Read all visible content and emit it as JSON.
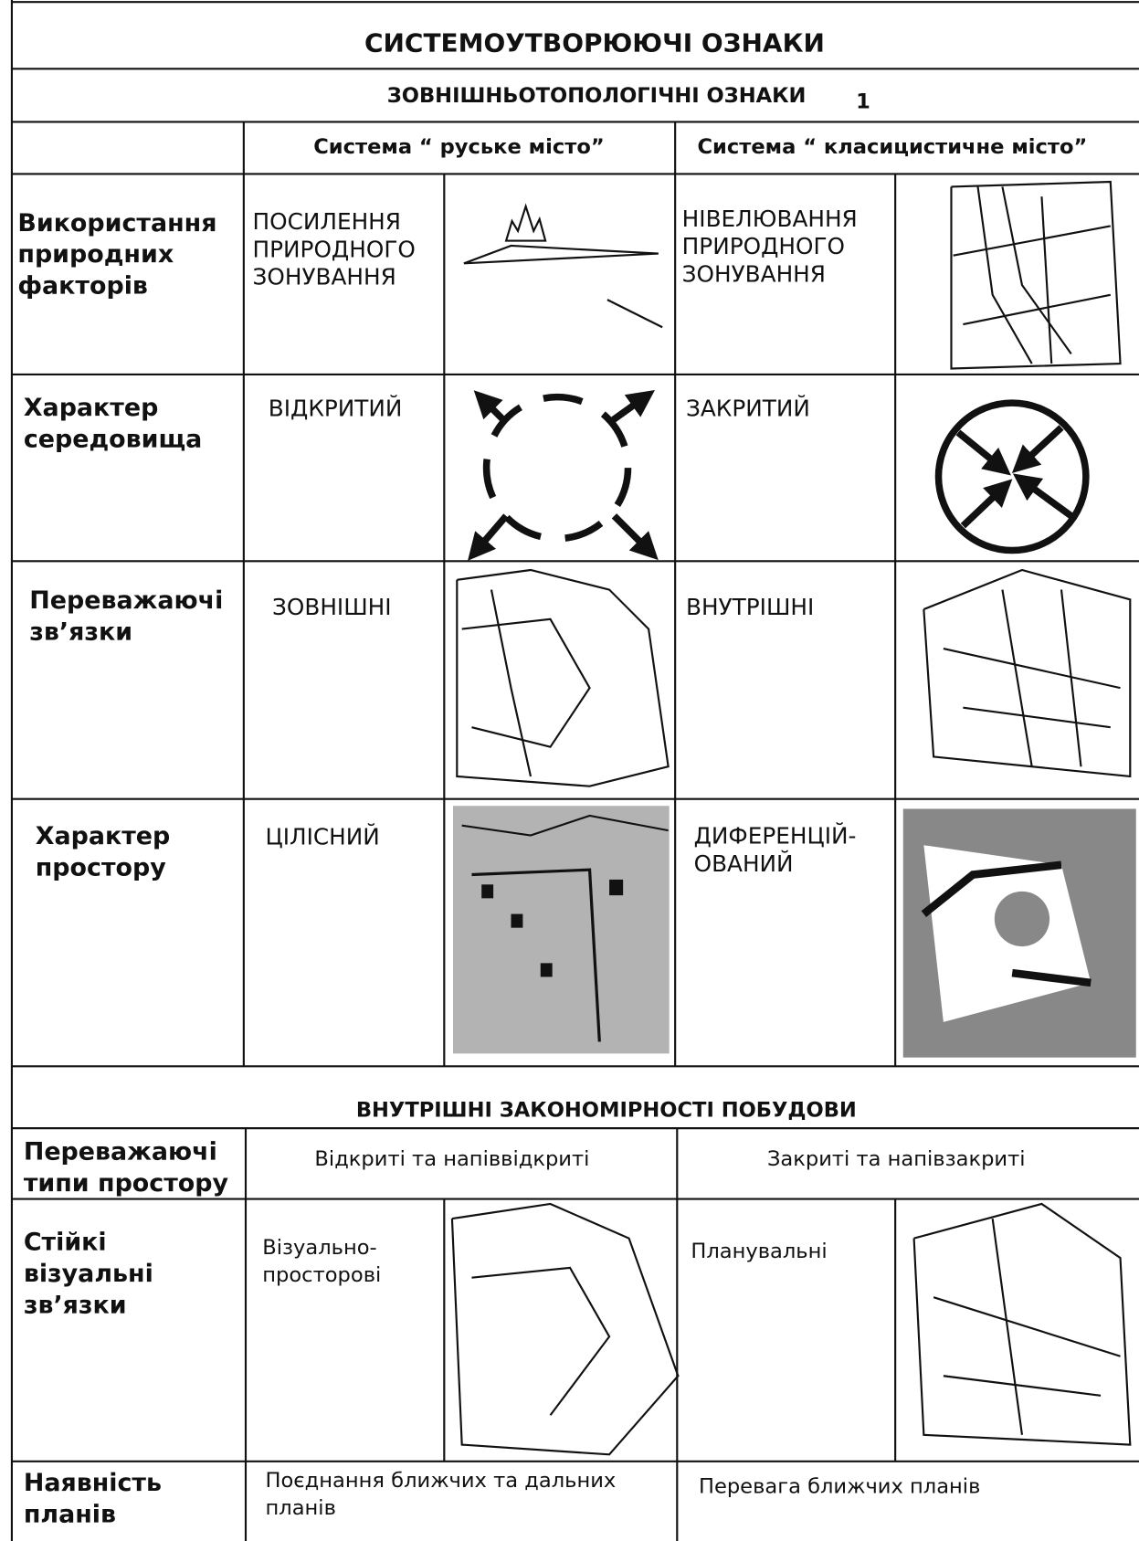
{
  "header": {
    "title": "СИСТЕМОУТВОРЮЮЧІ ОЗНАКИ",
    "subtitle": "ЗОВНІШНЬОТОПОЛОГІЧНІ ОЗНАКИ",
    "marker": "1"
  },
  "columns": [
    "Система “ руське місто”",
    "Система “ класицистичне місто”"
  ],
  "rows": [
    {
      "label": [
        "Використання",
        "природних",
        "факторів"
      ],
      "left": [
        "ПОСИЛЕННЯ",
        "ПРИРОДНОГО",
        "ЗОНУВАННЯ"
      ],
      "right": [
        "НІВЕЛЮВАННЯ",
        "ПРИРОДНОГО",
        "ЗОНУВАННЯ"
      ]
    },
    {
      "label": [
        "Характер",
        "середовища"
      ],
      "left": [
        "ВІДКРИТИЙ"
      ],
      "right": [
        "ЗАКРИТИЙ"
      ]
    },
    {
      "label": [
        "Переважаючі",
        "зв’язки"
      ],
      "left": [
        "ЗОВНІШНІ"
      ],
      "right": [
        "ВНУТРІШНІ"
      ]
    },
    {
      "label": [
        "Характер",
        "простору"
      ],
      "left": [
        "ЦІЛІСНИЙ"
      ],
      "right": [
        "ДИФЕРЕНЦІЙ-",
        "ОВАНИЙ"
      ]
    }
  ],
  "section2": {
    "title": "ВНУТРІШНІ ЗАКОНОМІРНОСТІ ПОБУДОВИ",
    "rows": [
      {
        "label": [
          "Переважаючі",
          "типи простору"
        ],
        "left": [
          "Відкриті та напіввідкриті"
        ],
        "right": [
          "Закриті та напівзакриті"
        ]
      },
      {
        "label": [
          "Стійкі",
          "візуальні",
          "зв’язки"
        ],
        "left": [
          "Візуально-",
          "просторові"
        ],
        "right": [
          "Планувальні"
        ]
      },
      {
        "label": [
          "Наявність",
          "планів"
        ],
        "left": [
          "Поєднання ближчих та дальних",
          "планів"
        ],
        "right": [
          "Перевага ближчих планів"
        ]
      }
    ]
  }
}
